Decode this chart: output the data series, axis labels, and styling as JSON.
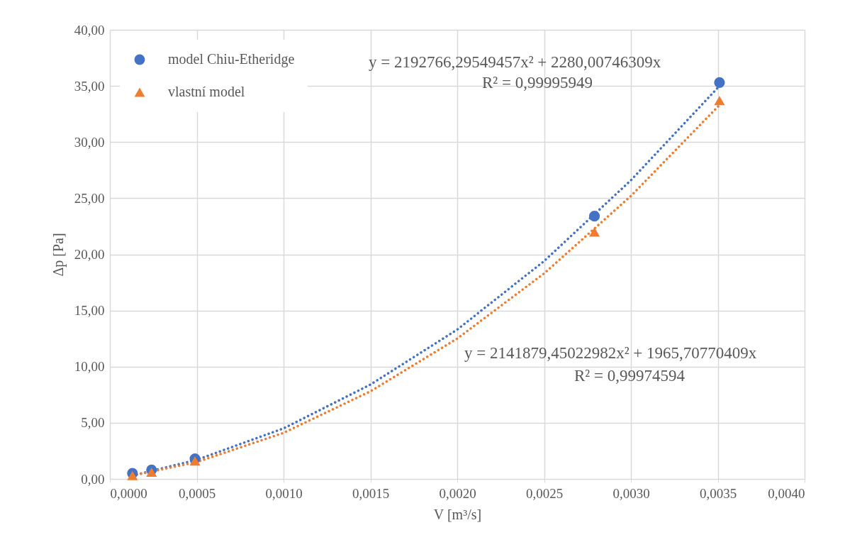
{
  "chart_data": {
    "type": "scatter",
    "xlabel": "V [m³/s]",
    "ylabel": "Δp [Pa]",
    "xlim": [
      0,
      0.004
    ],
    "ylim": [
      0,
      40
    ],
    "xticks": [
      {
        "value": 0,
        "label": "0,0000"
      },
      {
        "value": 0.0005,
        "label": "0,0005"
      },
      {
        "value": 0.001,
        "label": "0,0010"
      },
      {
        "value": 0.0015,
        "label": "0,0015"
      },
      {
        "value": 0.002,
        "label": "0,0020"
      },
      {
        "value": 0.0025,
        "label": "0,0025"
      },
      {
        "value": 0.003,
        "label": "0,0030"
      },
      {
        "value": 0.0035,
        "label": "0,0035"
      },
      {
        "value": 0.004,
        "label": "0,0040"
      }
    ],
    "yticks": [
      {
        "value": 0,
        "label": "0,00"
      },
      {
        "value": 5,
        "label": "5,00"
      },
      {
        "value": 10,
        "label": "10,00"
      },
      {
        "value": 15,
        "label": "15,00"
      },
      {
        "value": 20,
        "label": "20,00"
      },
      {
        "value": 25,
        "label": "25,00"
      },
      {
        "value": 30,
        "label": "30,00"
      },
      {
        "value": 35,
        "label": "35,00"
      },
      {
        "value": 40,
        "label": "40,00"
      }
    ],
    "grid": true,
    "legend": "top left",
    "series": [
      {
        "name": "model Chiu-Etheridge",
        "marker": "circle",
        "color": "#4472c4",
        "x": [
          0.00013,
          0.00024,
          0.00049,
          0.00279,
          0.00351
        ],
        "values": [
          0.5,
          0.8,
          1.8,
          23.4,
          35.3
        ]
      },
      {
        "name": "vlastní model",
        "marker": "triangle",
        "color": "#ed7d31",
        "x": [
          0.00013,
          0.00024,
          0.00049,
          0.00279,
          0.00351
        ],
        "values": [
          0.3,
          0.6,
          1.6,
          22.0,
          33.7
        ]
      },
      {
        "type": "line",
        "line_style": "dotted",
        "color": "#4472c4",
        "x": [
          0.00013,
          0.0005,
          0.001,
          0.0015,
          0.002,
          0.0025,
          0.003,
          0.00351
        ],
        "values": [
          0.3,
          1.7,
          4.5,
          8.4,
          13.3,
          19.4,
          26.6,
          35.0
        ]
      },
      {
        "type": "line",
        "line_style": "dotted",
        "color": "#ed7d31",
        "x": [
          0.00013,
          0.0005,
          0.001,
          0.0015,
          0.002,
          0.0025,
          0.003,
          0.00351
        ],
        "values": [
          0.3,
          1.5,
          4.1,
          7.8,
          12.5,
          18.3,
          25.2,
          33.3
        ]
      }
    ],
    "annotations": [
      "y = 2192766,29549457x² + 2280,00746309x",
      "R² = 0,99995949",
      "y = 2141879,45022982x² + 1965,70770409x",
      "R² = 0,99974594"
    ]
  }
}
